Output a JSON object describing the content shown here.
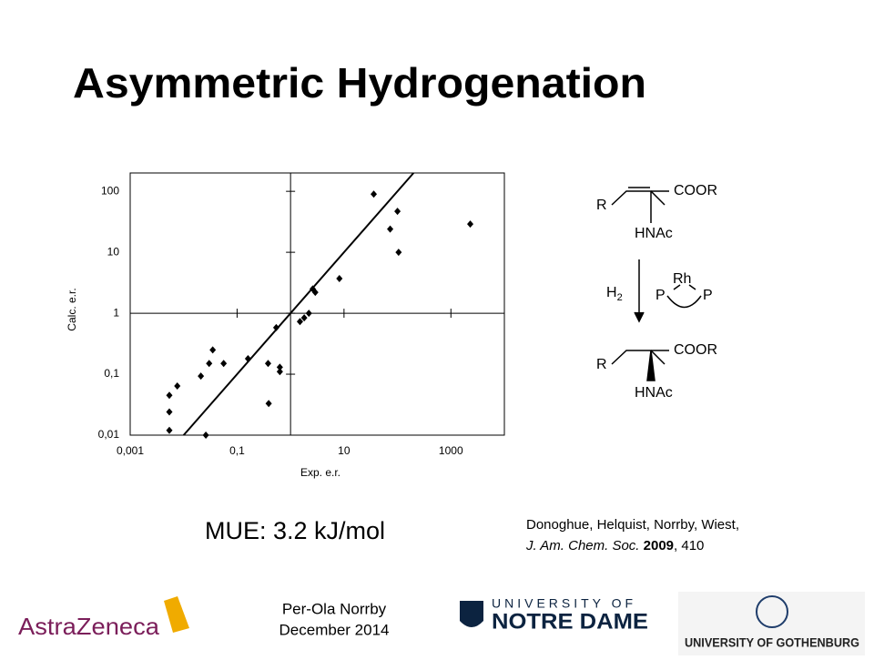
{
  "title": "Asymmetric Hydrogenation",
  "chart_data": {
    "type": "scatter",
    "x_label": "Exp. e.r.",
    "y_label": "Calc. e.r.",
    "log_x": true,
    "log_y": true,
    "color": "#000000",
    "axis_cross": 1,
    "identity_line": true,
    "xlim": [
      0.001,
      10000
    ],
    "ylim": [
      0.01,
      200
    ],
    "xticks": [
      {
        "value": 0.001,
        "label": "0,001"
      },
      {
        "value": 0.1,
        "label": "0,1"
      },
      10,
      1000
    ],
    "yticks": [
      {
        "value": 0.01,
        "label": "0,01"
      },
      {
        "value": 0.1,
        "label": "0,1"
      },
      1,
      10,
      100
    ],
    "x": [
      36,
      100,
      73,
      105,
      2300,
      8.2,
      2.6,
      2.9,
      2.2,
      1.8,
      1.5,
      0.54,
      0.16,
      0.38,
      0.63,
      0.63,
      0.39,
      0.035,
      0.03,
      0.056,
      0.021,
      0.0076,
      0.0054,
      0.0054,
      0.0054,
      0.026
    ],
    "values": [
      90,
      47,
      24,
      10,
      29,
      3.7,
      2.5,
      2.2,
      1,
      0.84,
      0.73,
      0.58,
      0.18,
      0.15,
      0.13,
      0.11,
      0.033,
      0.25,
      0.15,
      0.15,
      0.093,
      0.064,
      0.045,
      0.024,
      0.012,
      0.01
    ]
  },
  "result": "MUE: 3.2 kJ/mol",
  "citation": {
    "authors": "Donoghue, Helquist, Norrby, Wiest,",
    "journal": "J. Am. Chem. Soc.",
    "year": "2009",
    "page": ", 410"
  },
  "scheme": {
    "r1": "R",
    "coor1": "COOR",
    "hnac1": "HNAc",
    "h": "H",
    "sub": "2",
    "rh": "Rh",
    "p1": "P",
    "p2": "P",
    "r2": "R",
    "coor2": "COOR",
    "hnac2": "HNAc"
  },
  "footer": {
    "author": "Per-Ola Norrby",
    "date": "December 2014",
    "logo1": "AstraZeneca",
    "logo2a": "UNIVERSITY OF",
    "logo2b": "NOTRE DAME",
    "logo3": "UNIVERSITY OF GOTHENBURG"
  }
}
